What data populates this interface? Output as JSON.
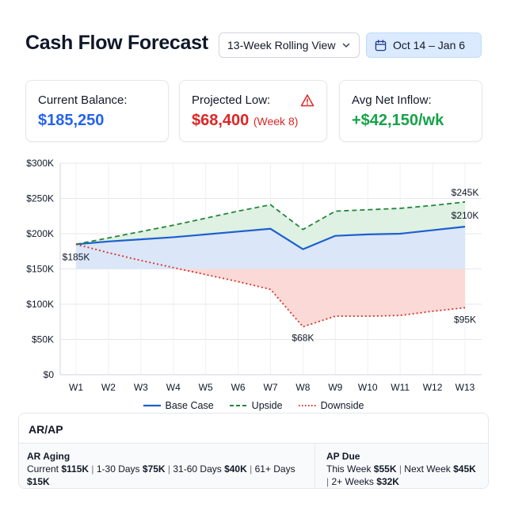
{
  "header": {
    "title": "Cash Flow Forecast",
    "view_select": "13-Week Rolling View",
    "date_range": "Oct 14 – Jan 6"
  },
  "cards": {
    "current_balance": {
      "label": "Current Balance:",
      "value": "$185,250",
      "color": "#2563eb"
    },
    "projected_low": {
      "label": "Projected Low:",
      "value": "$68,400",
      "sub": "(Week 8)",
      "color": "#dc2626"
    },
    "avg_net_inflow": {
      "label": "Avg Net Inflow:",
      "value": "+$42,150/wk",
      "color": "#16a34a"
    }
  },
  "chart_data": {
    "type": "line",
    "categories": [
      "W1",
      "W2",
      "W3",
      "W4",
      "W5",
      "W6",
      "W7",
      "W8",
      "W9",
      "W10",
      "W11",
      "W12",
      "W13"
    ],
    "ylim": [
      0,
      300000
    ],
    "yticks": [
      0,
      50000,
      100000,
      150000,
      200000,
      250000,
      300000
    ],
    "ytick_labels": [
      "$0",
      "$50K",
      "$100K",
      "$150K",
      "$200K",
      "$250K",
      "$300K"
    ],
    "grid": true,
    "legend_position": "bottom",
    "fill_baseline": 150000,
    "series": [
      {
        "name": "Base Case",
        "color": "#1d5fcf",
        "style": "solid",
        "values": [
          185000,
          189000,
          192000,
          195000,
          199000,
          203000,
          207000,
          178000,
          197000,
          199000,
          200000,
          205000,
          210000
        ]
      },
      {
        "name": "Upside",
        "color": "#22863a",
        "style": "dashed",
        "values": [
          185000,
          194000,
          203000,
          212000,
          222000,
          232000,
          241000,
          206000,
          232000,
          234000,
          236000,
          240000,
          245000
        ]
      },
      {
        "name": "Downside",
        "color": "#d93025",
        "style": "dotted",
        "values": [
          185000,
          173000,
          162000,
          152000,
          142000,
          132000,
          121000,
          68000,
          83000,
          83000,
          84000,
          90000,
          95000
        ]
      }
    ],
    "annotations": [
      {
        "text": "$185K",
        "x": "W1",
        "y": 185000
      },
      {
        "text": "$245K",
        "x": "W13",
        "y": 245000
      },
      {
        "text": "$210K",
        "x": "W13",
        "y": 210000
      },
      {
        "text": "$68K",
        "x": "W8",
        "y": 68000
      },
      {
        "text": "$95K",
        "x": "W13",
        "y": 95000
      }
    ],
    "fill_colors": {
      "base": "#dbe6f8",
      "upside": "#def1e2",
      "downside": "#fbd9d6"
    }
  },
  "arap": {
    "title": "AR/AP",
    "ar": {
      "title": "AR Aging",
      "items": [
        {
          "label": "Current",
          "value": "$115K"
        },
        {
          "label": "1-30 Days",
          "value": "$75K"
        },
        {
          "label": "31-60 Days",
          "value": "$40K"
        },
        {
          "label": "61+ Days",
          "value": "$15K"
        }
      ]
    },
    "ap": {
      "title": "AP Due",
      "items": [
        {
          "label": "This Week",
          "value": "$55K"
        },
        {
          "label": "Next Week",
          "value": "$45K"
        },
        {
          "label": "2+ Weeks",
          "value": "$32K"
        }
      ]
    }
  }
}
